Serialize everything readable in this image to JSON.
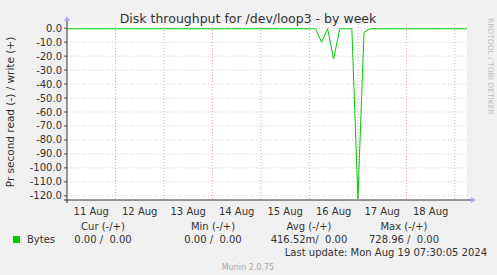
{
  "chart_data": {
    "type": "line",
    "title": "Disk throughput for /dev/loop3 - by week",
    "y_label": "Pr second read (-) / write (+)",
    "watermark": "RRDTOOL / TOBI OETIKER",
    "footer": "Munin 2.0.75",
    "stats_header": [
      "Cur (-/+)",
      "Min (-/+)",
      "Avg (-/+)",
      "Max (-/+)"
    ],
    "stats": [
      "0.00 /  0.00",
      "0.00 /  0.00",
      "416.52m/  0.00",
      "728.96 /  0.00"
    ],
    "last_update": "Last update: Mon Aug 19 07:30:05 2024",
    "categories": [
      null,
      null,
      null,
      null,
      "11 Aug",
      null,
      null,
      null,
      null,
      null,
      null,
      null,
      "12 Aug",
      null,
      null,
      null,
      null,
      null,
      null,
      null,
      "13 Aug",
      null,
      null,
      null,
      null,
      null,
      null,
      null,
      "14 Aug",
      null,
      null,
      null,
      null,
      null,
      null,
      null,
      "15 Aug",
      null,
      null,
      null,
      null,
      null,
      null,
      null,
      "16 Aug",
      null,
      null,
      null,
      null,
      null,
      null,
      null,
      "17 Aug",
      null,
      null,
      null,
      null,
      null,
      null,
      null,
      "18 Aug",
      null,
      null,
      null,
      null,
      null,
      null
    ],
    "series": [
      {
        "name": "Bytes",
        "color": "#00cc00",
        "values": [
          -0.4,
          -0.4,
          -0.4,
          -0.4,
          -0.4,
          -0.4,
          -0.4,
          -0.4,
          -0.4,
          -0.4,
          -0.4,
          -0.4,
          -0.4,
          -0.4,
          -0.4,
          -0.4,
          -0.4,
          -0.4,
          -0.4,
          -0.4,
          -0.4,
          -0.4,
          -0.4,
          -0.4,
          -0.4,
          -0.4,
          -0.4,
          -0.4,
          -0.4,
          -0.4,
          -0.4,
          -0.4,
          -0.4,
          -0.4,
          -0.4,
          -0.4,
          -0.4,
          -0.4,
          -0.4,
          -0.4,
          -0.4,
          -0.4,
          -10,
          -0.4,
          -22,
          -0.4,
          -0.4,
          -0.4,
          -122,
          -3,
          -0.4,
          -0.4,
          -0.4,
          -0.4,
          -0.4,
          -0.4,
          -0.4,
          -0.4,
          -0.4,
          -0.4,
          -0.4,
          -0.4,
          -0.4,
          -0.4,
          -0.4,
          -0.4,
          -0.4
        ]
      }
    ],
    "ylim": [
      -123,
      3
    ],
    "yticks": [
      {
        "value": 0,
        "label": "0.0"
      },
      {
        "value": -10,
        "label": "-10.0"
      },
      {
        "value": -20,
        "label": "-20.0"
      },
      {
        "value": -30,
        "label": "-30.0"
      },
      {
        "value": -40,
        "label": "-40.0"
      },
      {
        "value": -50,
        "label": "-50.0"
      },
      {
        "value": -60,
        "label": "-60.0"
      },
      {
        "value": -70,
        "label": "-70.0"
      },
      {
        "value": -80,
        "label": "-80.0"
      },
      {
        "value": -90,
        "label": "-90.0"
      },
      {
        "value": -100,
        "label": "-100.0"
      },
      {
        "value": -110,
        "label": "-110.0"
      },
      {
        "value": -120,
        "label": "-120.0"
      }
    ],
    "grid": true
  }
}
